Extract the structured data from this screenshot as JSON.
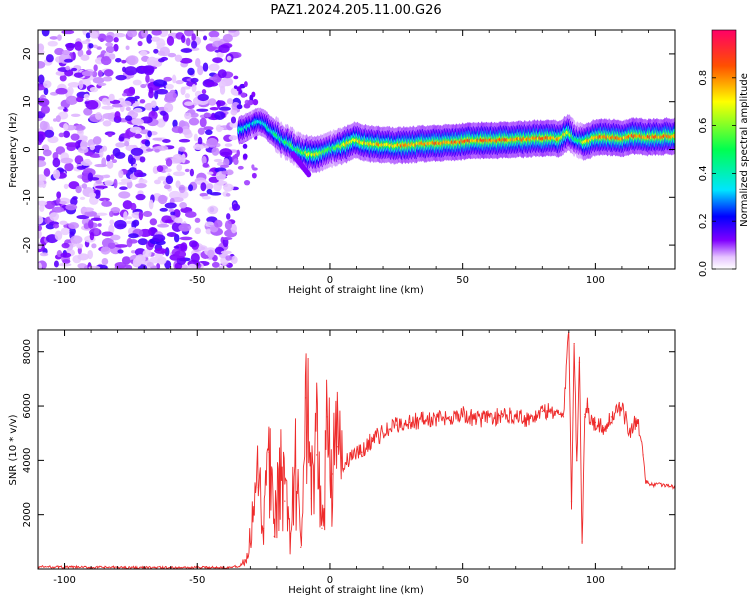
{
  "title": "PAZ1.2024.205.11.00.G26",
  "chart_data": [
    {
      "type": "heatmap",
      "xlabel": "Height of straight line (km)",
      "ylabel": "Frequency (Hz)",
      "xlim": [
        -110,
        130
      ],
      "ylim": [
        -25,
        25
      ],
      "xticks": [
        -100,
        -50,
        0,
        50,
        100
      ],
      "yticks": [
        -20,
        -10,
        0,
        10,
        20
      ],
      "colorbar": {
        "label": "Normalized spectral amplitude",
        "range": [
          0,
          1
        ],
        "ticks": [
          0.0,
          0.2,
          0.4,
          0.6,
          0.8
        ]
      },
      "noise_region_x": [
        -110,
        -35
      ],
      "ridge": {
        "x": [
          -34,
          -30,
          -27,
          -24,
          -22,
          -20,
          -18,
          -15,
          -12,
          -10,
          -8,
          -5,
          -2,
          0,
          3,
          6,
          9,
          12,
          18,
          25,
          35,
          45,
          55,
          65,
          75,
          82,
          86,
          90,
          93,
          96,
          100,
          105,
          110,
          115,
          120,
          125,
          130
        ],
        "freq": [
          4,
          5,
          6,
          5,
          4,
          3,
          2,
          1,
          0,
          -0.5,
          -1,
          -1,
          -0.5,
          0,
          0.5,
          1,
          2,
          1.5,
          1,
          0.8,
          1.2,
          1.5,
          1.8,
          2,
          2.2,
          2.5,
          2.2,
          3.5,
          2,
          1.5,
          2.5,
          2.6,
          2.4,
          2.8,
          2.5,
          2.7,
          2.8
        ],
        "amplitude": [
          0.45,
          0.4,
          0.35,
          0.4,
          0.45,
          0.5,
          0.5,
          0.55,
          0.55,
          0.6,
          0.7,
          0.75,
          0.6,
          0.55,
          0.6,
          0.75,
          0.85,
          0.8,
          0.85,
          0.85,
          0.85,
          0.9,
          0.9,
          0.9,
          0.85,
          0.9,
          0.85,
          0.7,
          0.5,
          0.75,
          0.9,
          0.9,
          0.85,
          0.9,
          0.9,
          0.9,
          0.85
        ]
      }
    },
    {
      "type": "line",
      "xlabel": "Height of straight line (km)",
      "ylabel": "SNR (10 * v/v)",
      "xlim": [
        -110,
        130
      ],
      "ylim": [
        0,
        8800
      ],
      "xticks": [
        -100,
        -50,
        0,
        50,
        100
      ],
      "yticks": [
        2000,
        4000,
        6000,
        8000
      ],
      "color": "#ee2a2a",
      "series": [
        {
          "x": [
            -110,
            -100,
            -90,
            -80,
            -70,
            -60,
            -50,
            -40,
            -34,
            -31,
            -29,
            -27,
            -25,
            -23,
            -21,
            -19,
            -17,
            -15,
            -13,
            -11,
            -9,
            -7,
            -5,
            -3,
            -1,
            1,
            3,
            5,
            8,
            12,
            16,
            20,
            25,
            30,
            35,
            40,
            45,
            50,
            55,
            60,
            65,
            70,
            75,
            80,
            85,
            88,
            90,
            91,
            92,
            93,
            94,
            95,
            96,
            97,
            98,
            100,
            103,
            106,
            110,
            113,
            116,
            118,
            119,
            122,
            126,
            130
          ],
          "y": [
            80,
            70,
            60,
            60,
            50,
            50,
            50,
            60,
            100,
            400,
            1800,
            3000,
            1500,
            4300,
            1200,
            3500,
            2500,
            1300,
            3800,
            800,
            6300,
            2600,
            4200,
            1500,
            5600,
            3500,
            4500,
            3700,
            4200,
            4300,
            4800,
            5000,
            5300,
            5400,
            5500,
            5500,
            5600,
            5700,
            5500,
            5600,
            5600,
            5700,
            5500,
            5800,
            5800,
            5600,
            8800,
            2500,
            8300,
            4000,
            7600,
            1000,
            5700,
            6100,
            5400,
            5400,
            5200,
            5600,
            5900,
            5100,
            5500,
            4200,
            3200,
            3100,
            3100,
            3000
          ]
        }
      ]
    }
  ]
}
